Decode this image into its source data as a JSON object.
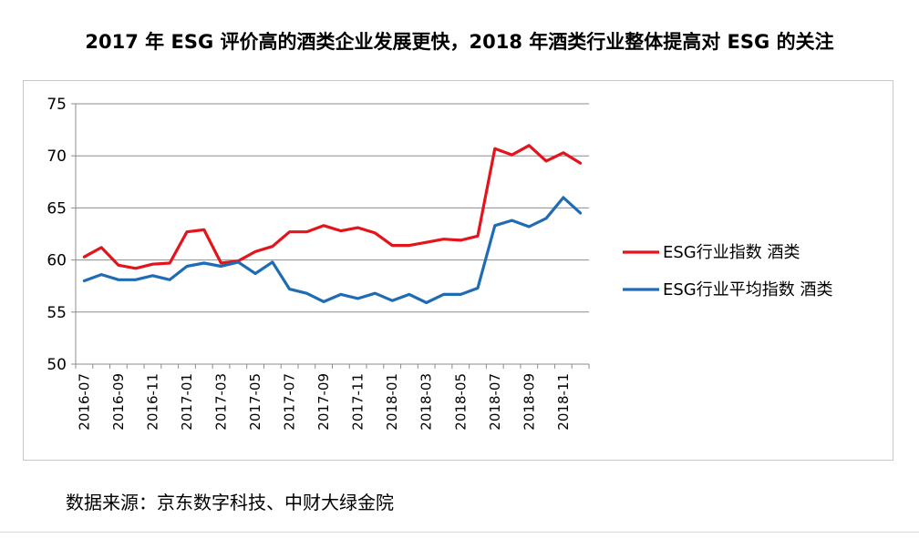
{
  "title": "2017 年 ESG 评价高的酒类企业发展更快，2018 年酒类行业整体提高对 ESG 的关注",
  "source": "数据来源：京东数字科技、中财大绿金院",
  "chart_data": {
    "type": "line",
    "x": [
      "2016-07",
      "2016-08",
      "2016-09",
      "2016-10",
      "2016-11",
      "2016-12",
      "2017-01",
      "2017-02",
      "2017-03",
      "2017-04",
      "2017-05",
      "2017-06",
      "2017-07",
      "2017-08",
      "2017-09",
      "2017-10",
      "2017-11",
      "2017-12",
      "2018-01",
      "2018-02",
      "2018-03",
      "2018-04",
      "2018-05",
      "2018-06",
      "2018-07",
      "2018-08",
      "2018-09",
      "2018-10",
      "2018-11",
      "2018-12"
    ],
    "x_tick_labels": [
      "2016-07",
      "2016-09",
      "2016-11",
      "2017-01",
      "2017-03",
      "2017-05",
      "2017-07",
      "2017-09",
      "2017-11",
      "2018-01",
      "2018-03",
      "2018-05",
      "2018-07",
      "2018-09",
      "2018-11"
    ],
    "ylim": [
      50,
      75
    ],
    "yticks": [
      50,
      55,
      60,
      65,
      70,
      75
    ],
    "grid": true,
    "legend_position": "right",
    "series": [
      {
        "name": "ESG行业指数 酒类",
        "color": "#e3141c",
        "values": [
          60.3,
          61.2,
          59.5,
          59.2,
          59.6,
          59.7,
          62.7,
          62.9,
          59.7,
          59.9,
          60.8,
          61.3,
          62.7,
          62.7,
          63.3,
          62.8,
          63.1,
          62.6,
          61.4,
          61.4,
          61.7,
          62.0,
          61.9,
          62.3,
          70.7,
          70.1,
          71.0,
          69.5,
          70.3,
          69.3
        ]
      },
      {
        "name": "ESG行业平均指数 酒类",
        "color": "#1f6cb5",
        "values": [
          58.0,
          58.6,
          58.1,
          58.1,
          58.5,
          58.1,
          59.4,
          59.7,
          59.4,
          59.8,
          58.7,
          59.8,
          57.2,
          56.8,
          56.0,
          56.7,
          56.3,
          56.8,
          56.1,
          56.7,
          55.9,
          56.7,
          56.7,
          57.3,
          63.3,
          63.8,
          63.2,
          64.0,
          66.0,
          64.5
        ]
      }
    ]
  }
}
